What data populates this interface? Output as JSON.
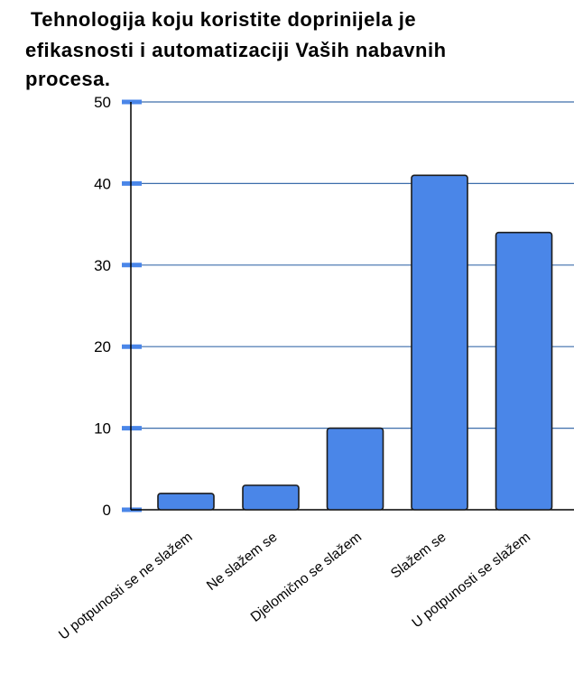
{
  "chart_data": {
    "type": "bar",
    "title_lines": [
      "Tehnologija koju koristite doprinijela je",
      "efikasnosti i automatizaciji Vaših nabavnih",
      "procesa."
    ],
    "categories": [
      "U potpunosti se ne slažem",
      "Ne slažem se",
      "Djelomično se slažem",
      "Slažem se",
      "U potpunosti se slažem"
    ],
    "values": [
      2,
      3,
      10,
      41,
      34
    ],
    "ylim": [
      0,
      50
    ],
    "yticks": [
      0,
      10,
      20,
      30,
      40,
      50
    ],
    "xlabel": "",
    "ylabel": "",
    "grid": true,
    "legend": "none",
    "colors": {
      "bar": "#4a86e8",
      "bar_border": "#1c1c1c",
      "grid": "#3d6eab",
      "tick_mark": "#4a86e8",
      "axis": "#000000"
    }
  }
}
